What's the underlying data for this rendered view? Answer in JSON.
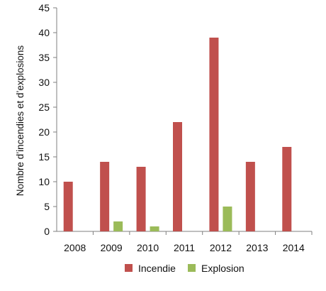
{
  "chart_data": {
    "type": "bar",
    "title": "",
    "xlabel": "",
    "ylabel": "Nombre d’incendies et d’explosions",
    "categories": [
      "2008",
      "2009",
      "2010",
      "2011",
      "2012",
      "2013",
      "2014"
    ],
    "series": [
      {
        "name": "Incendie",
        "values": [
          10,
          14,
          13,
          22,
          39,
          14,
          17
        ],
        "color": "#c0504d"
      },
      {
        "name": "Explosion",
        "values": [
          0,
          2,
          1,
          0,
          5,
          0,
          0
        ],
        "color": "#9bbb59"
      }
    ],
    "ylim": [
      0,
      45
    ],
    "yticks": [
      "0",
      "5",
      "10",
      "15",
      "20",
      "25",
      "30",
      "35",
      "40",
      "45"
    ],
    "grid": false,
    "legend_position": "bottom"
  }
}
